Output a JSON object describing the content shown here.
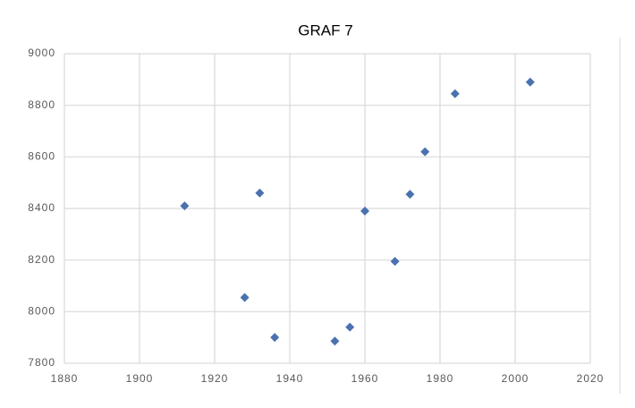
{
  "chart_data": {
    "type": "scatter",
    "title": "GRAF 7",
    "x": [
      1912,
      1928,
      1932,
      1936,
      1952,
      1956,
      1960,
      1968,
      1972,
      1976,
      1984,
      2004
    ],
    "series": [
      {
        "color": "#4a72b0",
        "values": [
          8410,
          8055,
          8460,
          7900,
          7886,
          7940,
          8390,
          8195,
          8455,
          8620,
          8845,
          8890
        ]
      }
    ],
    "xlim": [
      1880,
      2020
    ],
    "xticks": [
      1880,
      1900,
      1920,
      1940,
      1960,
      1980,
      2000,
      2020
    ],
    "ylim": [
      7800,
      9000
    ],
    "yticks": [
      7800,
      8000,
      8200,
      8400,
      8600,
      8800,
      9000
    ],
    "grid": true
  }
}
